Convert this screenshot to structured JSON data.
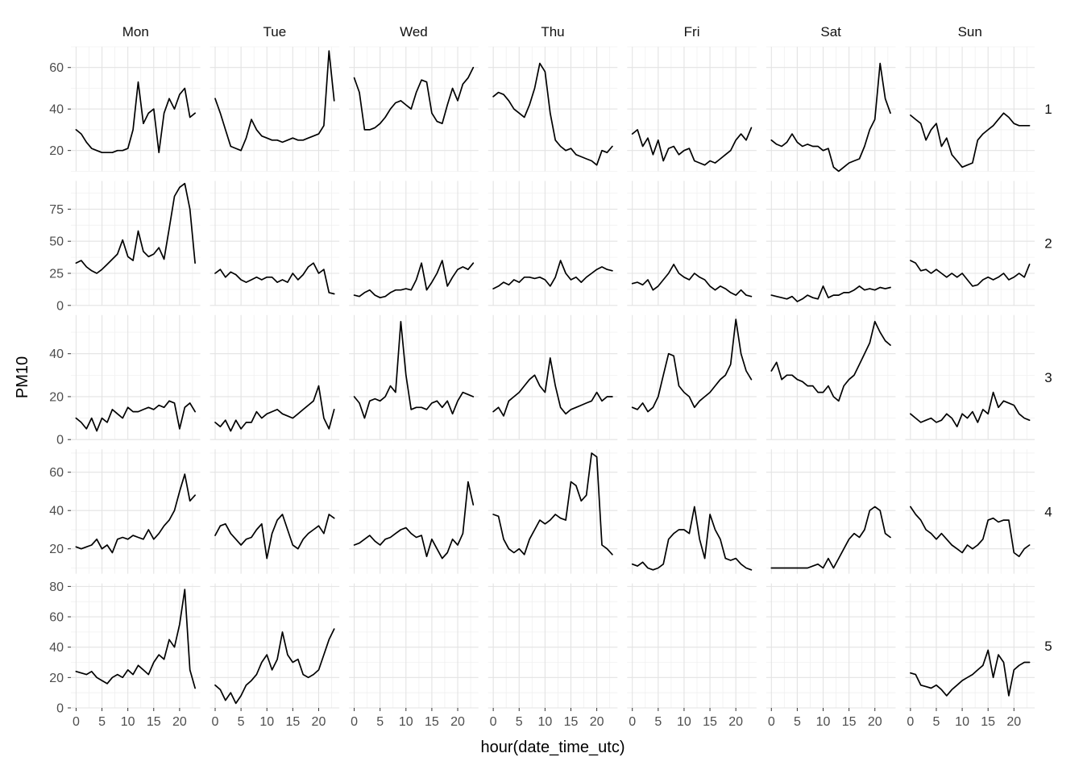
{
  "chart_data": {
    "type": "line",
    "title": "",
    "x_label": "hour(date_time_utc)",
    "y_label": "PM10",
    "legend": "none",
    "grid": "on",
    "col_facets": [
      "Mon",
      "Tue",
      "Wed",
      "Thu",
      "Fri",
      "Sat",
      "Sun"
    ],
    "row_facets": [
      "1",
      "2",
      "3",
      "4",
      "5"
    ],
    "x": [
      0,
      1,
      2,
      3,
      4,
      5,
      6,
      7,
      8,
      9,
      10,
      11,
      12,
      13,
      14,
      15,
      16,
      17,
      18,
      19,
      20,
      21,
      22,
      23
    ],
    "x_ticks": [
      0,
      5,
      10,
      15,
      20
    ],
    "x_range": [
      -1,
      24
    ],
    "rows": [
      {
        "label": "1",
        "y_ticks": [
          20,
          40,
          60
        ],
        "y_range": [
          10,
          70
        ],
        "series": {
          "Mon": [
            30,
            28,
            24,
            21,
            20,
            19,
            19,
            19,
            20,
            20,
            21,
            30,
            53,
            33,
            38,
            40,
            19,
            38,
            45,
            40,
            47,
            50,
            36,
            38
          ],
          "Tue": [
            45,
            38,
            30,
            22,
            21,
            20,
            26,
            35,
            30,
            27,
            26,
            25,
            25,
            24,
            25,
            26,
            25,
            25,
            26,
            27,
            28,
            32,
            68,
            44
          ],
          "Wed": [
            55,
            48,
            30,
            30,
            31,
            33,
            36,
            40,
            43,
            44,
            42,
            40,
            48,
            54,
            53,
            38,
            34,
            33,
            42,
            50,
            44,
            52,
            55,
            60
          ],
          "Thu": [
            46,
            48,
            47,
            44,
            40,
            38,
            36,
            42,
            50,
            62,
            58,
            38,
            25,
            22,
            20,
            21,
            18,
            17,
            16,
            15,
            13,
            20,
            19,
            22
          ],
          "Fri": [
            28,
            30,
            22,
            26,
            18,
            25,
            15,
            21,
            22,
            18,
            20,
            21,
            15,
            14,
            13,
            15,
            14,
            16,
            18,
            20,
            25,
            28,
            25,
            31
          ],
          "Sat": [
            25,
            23,
            22,
            24,
            28,
            24,
            22,
            23,
            22,
            22,
            20,
            21,
            12,
            10,
            12,
            14,
            15,
            16,
            22,
            30,
            35,
            62,
            45,
            38
          ],
          "Sun": [
            37,
            35,
            33,
            25,
            30,
            33,
            22,
            26,
            18,
            15,
            12,
            13,
            14,
            25,
            28,
            30,
            32,
            35,
            38,
            36,
            33,
            32,
            32,
            32
          ]
        }
      },
      {
        "label": "2",
        "y_ticks": [
          0,
          25,
          50,
          75
        ],
        "y_range": [
          0,
          97
        ],
        "series": {
          "Mon": [
            33,
            35,
            30,
            27,
            25,
            28,
            32,
            36,
            40,
            51,
            38,
            35,
            58,
            42,
            38,
            40,
            45,
            36,
            60,
            85,
            92,
            95,
            75,
            33
          ],
          "Tue": [
            25,
            28,
            22,
            26,
            24,
            20,
            18,
            20,
            22,
            20,
            22,
            22,
            18,
            20,
            18,
            25,
            20,
            24,
            30,
            33,
            25,
            28,
            10,
            9
          ],
          "Wed": [
            8,
            7,
            10,
            12,
            8,
            6,
            7,
            10,
            12,
            12,
            13,
            12,
            20,
            33,
            12,
            18,
            25,
            35,
            15,
            22,
            28,
            30,
            28,
            33
          ],
          "Thu": [
            13,
            15,
            18,
            16,
            20,
            18,
            22,
            22,
            21,
            22,
            20,
            15,
            22,
            35,
            25,
            20,
            22,
            18,
            22,
            25,
            28,
            30,
            28,
            27
          ],
          "Fri": [
            17,
            18,
            16,
            20,
            12,
            15,
            20,
            25,
            32,
            25,
            22,
            20,
            25,
            22,
            20,
            15,
            12,
            15,
            13,
            10,
            8,
            12,
            8,
            7
          ],
          "Sat": [
            8,
            7,
            6,
            5,
            7,
            3,
            5,
            8,
            6,
            5,
            15,
            6,
            8,
            8,
            10,
            10,
            12,
            15,
            12,
            13,
            12,
            14,
            13,
            14
          ],
          "Sun": [
            35,
            33,
            27,
            28,
            25,
            28,
            25,
            22,
            25,
            22,
            25,
            20,
            15,
            16,
            20,
            22,
            20,
            22,
            25,
            20,
            22,
            25,
            22,
            32
          ]
        }
      },
      {
        "label": "3",
        "y_ticks": [
          0,
          20,
          40
        ],
        "y_range": [
          0,
          58
        ],
        "series": {
          "Mon": [
            10,
            8,
            5,
            10,
            4,
            10,
            8,
            14,
            12,
            10,
            15,
            13,
            13,
            14,
            15,
            14,
            16,
            15,
            18,
            17,
            5,
            15,
            17,
            13
          ],
          "Tue": [
            8,
            6,
            9,
            4,
            9,
            5,
            8,
            8,
            13,
            10,
            12,
            13,
            14,
            12,
            11,
            10,
            12,
            14,
            16,
            18,
            25,
            10,
            5,
            14
          ],
          "Wed": [
            20,
            17,
            10,
            18,
            19,
            18,
            20,
            25,
            22,
            55,
            30,
            14,
            15,
            15,
            14,
            17,
            18,
            15,
            18,
            12,
            18,
            22,
            21,
            20
          ],
          "Thu": [
            13,
            15,
            11,
            18,
            20,
            22,
            25,
            28,
            30,
            25,
            22,
            38,
            25,
            15,
            12,
            14,
            15,
            16,
            17,
            18,
            22,
            18,
            20,
            20
          ],
          "Fri": [
            15,
            14,
            17,
            13,
            15,
            20,
            30,
            40,
            39,
            25,
            22,
            20,
            15,
            18,
            20,
            22,
            25,
            28,
            30,
            35,
            56,
            40,
            32,
            28
          ],
          "Sat": [
            32,
            36,
            28,
            30,
            30,
            28,
            27,
            25,
            25,
            22,
            22,
            25,
            20,
            18,
            25,
            28,
            30,
            35,
            40,
            45,
            55,
            50,
            46,
            44
          ],
          "Sun": [
            12,
            10,
            8,
            9,
            10,
            8,
            9,
            12,
            10,
            6,
            12,
            10,
            13,
            8,
            14,
            12,
            22,
            15,
            18,
            17,
            16,
            12,
            10,
            9
          ]
        }
      },
      {
        "label": "4",
        "y_ticks": [
          20,
          40,
          60
        ],
        "y_range": [
          7,
          72
        ],
        "series": {
          "Mon": [
            21,
            20,
            21,
            22,
            25,
            20,
            22,
            18,
            25,
            26,
            25,
            27,
            26,
            25,
            30,
            25,
            28,
            32,
            35,
            40,
            50,
            59,
            45,
            48
          ],
          "Tue": [
            27,
            32,
            33,
            28,
            25,
            22,
            25,
            26,
            30,
            33,
            15,
            28,
            35,
            38,
            30,
            22,
            20,
            25,
            28,
            30,
            32,
            28,
            38,
            36
          ],
          "Wed": [
            22,
            23,
            25,
            27,
            24,
            22,
            25,
            26,
            28,
            30,
            31,
            28,
            26,
            27,
            16,
            25,
            20,
            15,
            18,
            25,
            22,
            28,
            55,
            43
          ],
          "Thu": [
            38,
            37,
            25,
            20,
            18,
            20,
            17,
            25,
            30,
            35,
            33,
            35,
            38,
            36,
            35,
            55,
            53,
            45,
            48,
            70,
            68,
            22,
            20,
            17
          ],
          "Fri": [
            12,
            11,
            13,
            10,
            9,
            10,
            12,
            25,
            28,
            30,
            30,
            28,
            42,
            25,
            15,
            38,
            30,
            25,
            15,
            14,
            15,
            12,
            10,
            9
          ],
          "Sat": [
            10,
            10,
            10,
            10,
            10,
            10,
            10,
            10,
            11,
            12,
            10,
            15,
            10,
            15,
            20,
            25,
            28,
            26,
            30,
            40,
            42,
            40,
            28,
            26
          ],
          "Sun": [
            42,
            38,
            35,
            30,
            28,
            25,
            28,
            25,
            22,
            20,
            18,
            22,
            20,
            22,
            25,
            35,
            36,
            34,
            35,
            35,
            18,
            16,
            20,
            22
          ]
        }
      },
      {
        "label": "5",
        "y_ticks": [
          0,
          20,
          40,
          60,
          80
        ],
        "y_range": [
          0,
          82
        ],
        "series": {
          "Mon": [
            24,
            23,
            22,
            24,
            20,
            18,
            16,
            20,
            22,
            20,
            25,
            22,
            28,
            25,
            22,
            30,
            35,
            32,
            45,
            40,
            55,
            78,
            25,
            13
          ],
          "Tue": [
            15,
            12,
            5,
            10,
            3,
            8,
            15,
            18,
            22,
            30,
            35,
            25,
            32,
            50,
            35,
            30,
            32,
            22,
            20,
            22,
            25,
            35,
            45,
            52
          ],
          "Wed": null,
          "Thu": null,
          "Fri": null,
          "Sat": null,
          "Sun": [
            23,
            22,
            15,
            14,
            13,
            15,
            12,
            8,
            12,
            15,
            18,
            20,
            22,
            25,
            28,
            38,
            20,
            35,
            30,
            8,
            25,
            28,
            30,
            30
          ]
        }
      }
    ]
  },
  "style": {
    "panel_bg": "#ffffff",
    "grid_minor": "#f0f0f0",
    "grid_major": "#e3e3e3",
    "line": "#000000",
    "tick": "#333333"
  }
}
